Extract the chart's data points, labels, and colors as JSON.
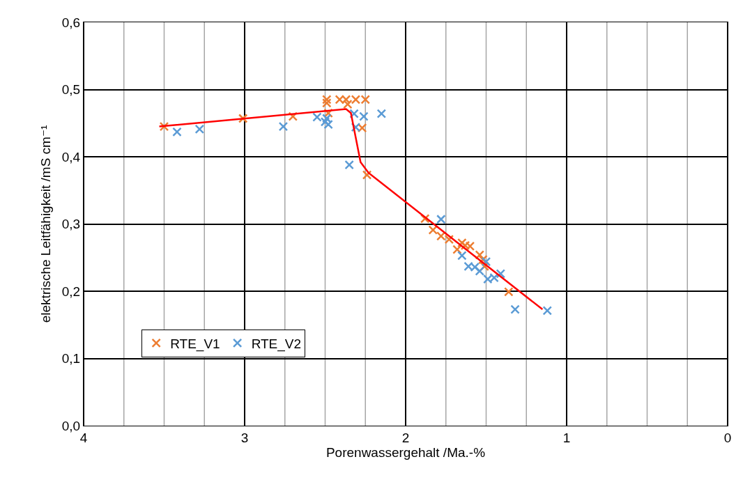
{
  "chart_data": {
    "type": "scatter",
    "xlabel": "Porenwassergehalt /Ma.-%",
    "ylabel": "elektrische Leitfähigkeit /mS cm⁻¹",
    "xlim": [
      4,
      0
    ],
    "ylim": [
      0,
      0.6
    ],
    "xticks": [
      4,
      {
        "value": 3.75,
        "label": null
      },
      {
        "value": 3.5,
        "label": null
      },
      {
        "value": 3.25,
        "label": null
      },
      3,
      {
        "value": 2.75,
        "label": null
      },
      {
        "value": 2.5,
        "label": null
      },
      {
        "value": 2.25,
        "label": null
      },
      2,
      {
        "value": 1.75,
        "label": null
      },
      {
        "value": 1.5,
        "label": null
      },
      {
        "value": 1.25,
        "label": null
      },
      1,
      {
        "value": 0.75,
        "label": null
      },
      {
        "value": 0.5,
        "label": null
      },
      {
        "value": 0.25,
        "label": null
      },
      0
    ],
    "yticks": [
      {
        "value": 0,
        "label": "0,0"
      },
      {
        "value": 0.1,
        "label": "0,1"
      },
      {
        "value": 0.2,
        "label": "0,2"
      },
      {
        "value": 0.3,
        "label": "0,3"
      },
      {
        "value": 0.4,
        "label": "0,4"
      },
      {
        "value": 0.5,
        "label": "0,5"
      },
      {
        "value": 0.6,
        "label": "0,6"
      }
    ],
    "grid": true,
    "legend": "bottom left",
    "marker": "cross",
    "series": [
      {
        "name": "RTE_V1",
        "color": "#ed7d31",
        "x": [
          3.5,
          3.01,
          2.7,
          2.49,
          2.49,
          2.48,
          2.41,
          2.37,
          2.36,
          2.31,
          2.25,
          2.27,
          2.24,
          1.88,
          1.83,
          1.78,
          1.73,
          1.68,
          1.65,
          1.63,
          1.6,
          1.54,
          1.52,
          1.51,
          1.36
        ],
        "values": [
          0.445,
          0.457,
          0.46,
          0.485,
          0.48,
          0.465,
          0.485,
          0.485,
          0.478,
          0.485,
          0.485,
          0.443,
          0.373,
          0.308,
          0.291,
          0.282,
          0.277,
          0.262,
          0.272,
          0.268,
          0.267,
          0.254,
          0.247,
          0.237,
          0.199
        ]
      },
      {
        "name": "RTE_V2",
        "color": "#5b9bd5",
        "x": [
          3.42,
          3.28,
          2.76,
          2.55,
          2.49,
          2.48,
          2.5,
          2.32,
          2.31,
          2.26,
          2.15,
          2.35,
          1.78,
          1.65,
          1.61,
          1.57,
          1.54,
          1.5,
          1.49,
          1.45,
          1.41,
          1.32,
          1.12
        ],
        "values": [
          0.437,
          0.441,
          0.445,
          0.459,
          0.457,
          0.448,
          0.452,
          0.464,
          0.444,
          0.46,
          0.464,
          0.388,
          0.307,
          0.253,
          0.237,
          0.236,
          0.23,
          0.244,
          0.218,
          0.22,
          0.226,
          0.173,
          0.171
        ]
      },
      {
        "type": "line",
        "marker": "none",
        "color": "#ff0000",
        "x": [
          3.53,
          2.37,
          2.34,
          2.28,
          2.23,
          1.15
        ],
        "values": [
          0.445,
          0.471,
          0.465,
          0.392,
          0.376,
          0.173
        ]
      }
    ]
  }
}
